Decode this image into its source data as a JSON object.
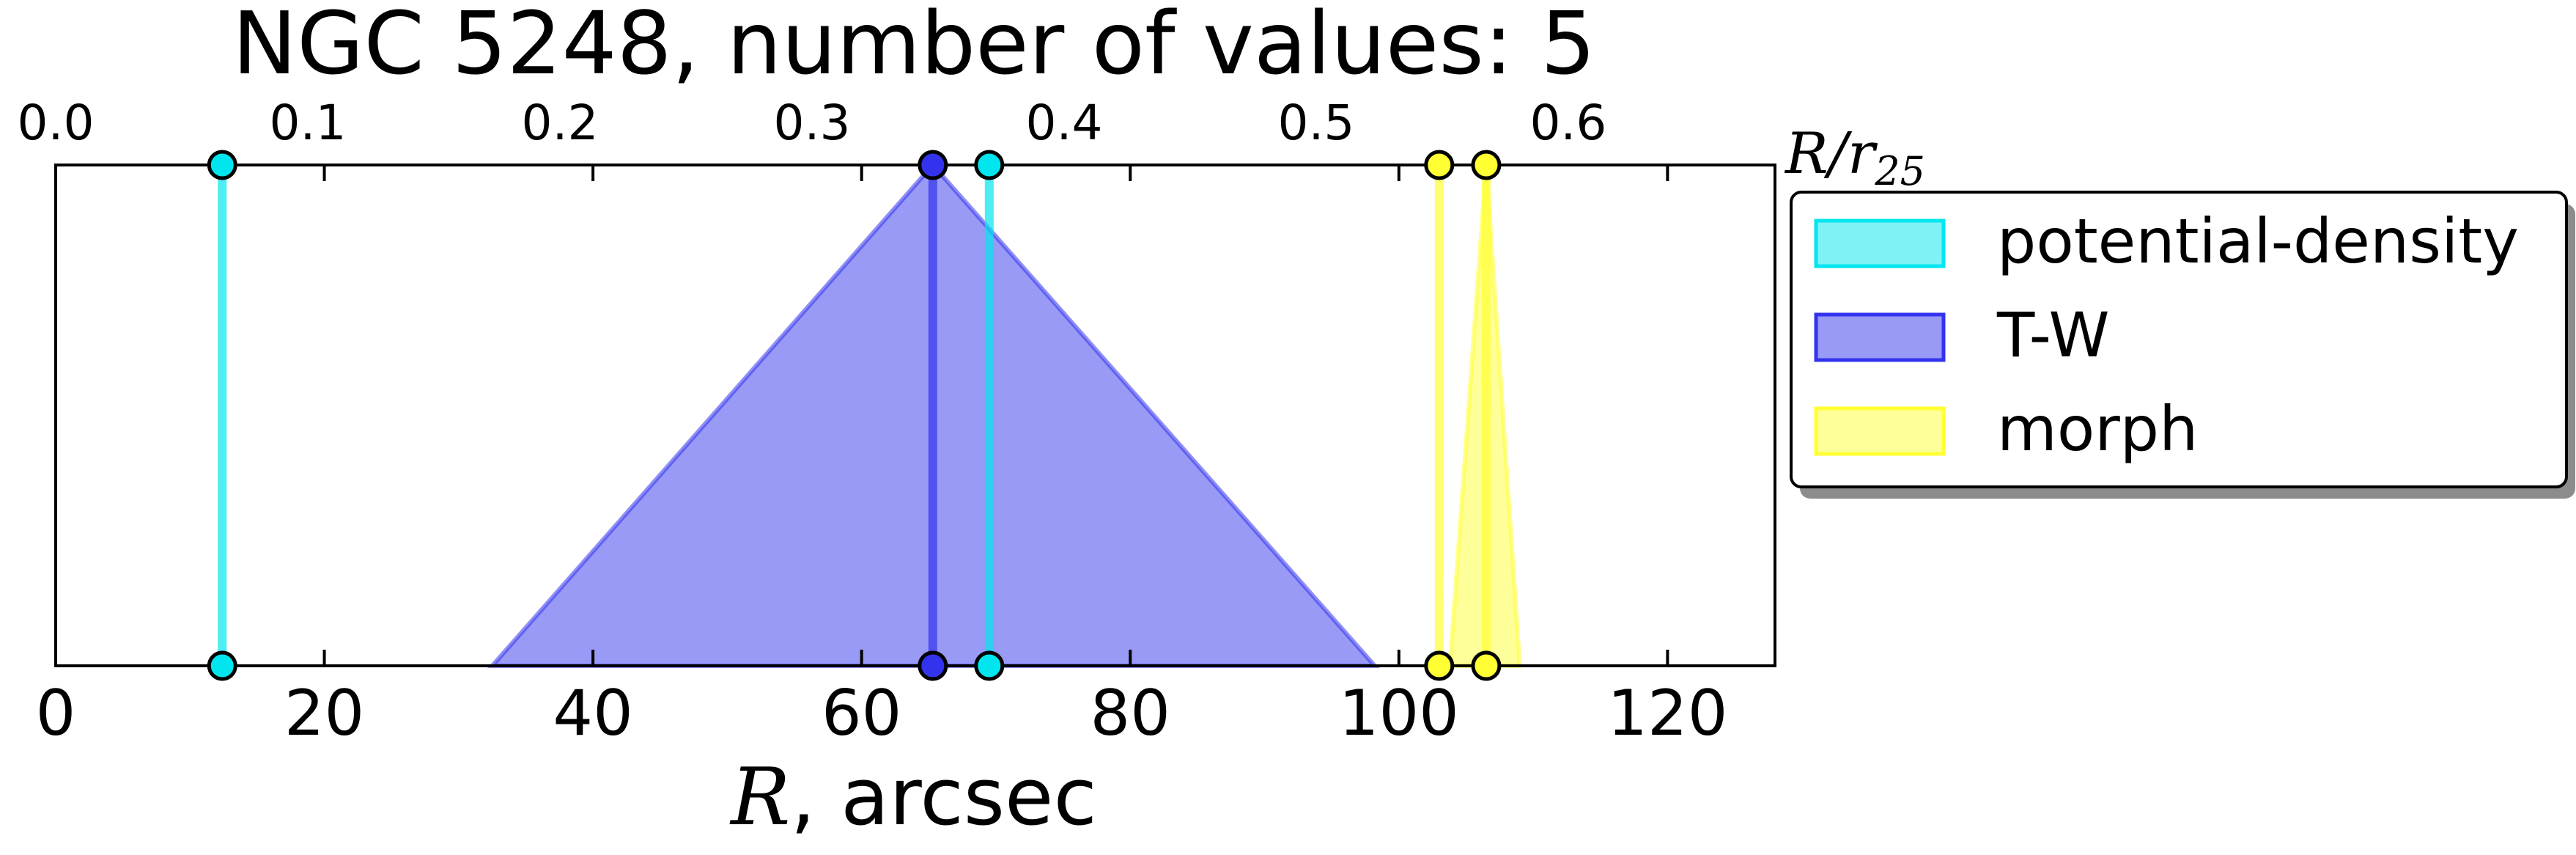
{
  "chart_data": {
    "type": "area",
    "title": "NGC 5248, number of values: 5",
    "xlabel_symbol": "R",
    "xlabel_unit": ", arcsec",
    "top_axis_label": "R/r",
    "top_axis_label_sub": "25",
    "xlim": [
      0,
      128
    ],
    "x_ticks": [
      0,
      20,
      40,
      60,
      80,
      100,
      120
    ],
    "top_xlim": [
      0.0,
      0.682
    ],
    "top_ticks": [
      0.0,
      0.1,
      0.2,
      0.3,
      0.4,
      0.5,
      0.6
    ],
    "top_tick_labels": [
      "0.0",
      "0.1",
      "0.2",
      "0.3",
      "0.4",
      "0.5",
      "0.6"
    ],
    "grid": false,
    "legend_position": "right",
    "series": [
      {
        "name": "potential-density",
        "color": "#00e5ee",
        "values": [
          12.4,
          69.5
        ],
        "triangles": []
      },
      {
        "name": "T-W",
        "color": "#3333ee",
        "values": [
          65.3
        ],
        "triangles": [
          [
            32.5,
            65.3,
            98.2
          ]
        ]
      },
      {
        "name": "morph",
        "color": "#ffff33",
        "values": [
          103.0,
          106.5
        ],
        "triangles": [
          [
            103.8,
            106.5,
            109.0
          ]
        ]
      }
    ]
  }
}
